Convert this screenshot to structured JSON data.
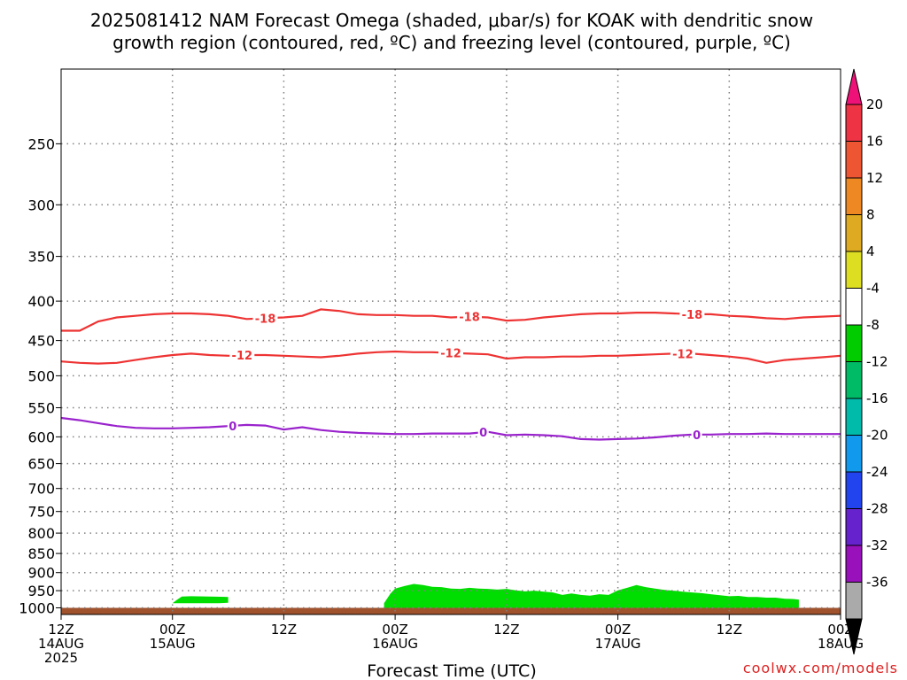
{
  "title_line1": "2025081412 NAM Forecast Omega (shaded, μbar/s) for KOAK with dendritic snow",
  "title_line2": "growth region (contoured, red, ºC) and freezing level (contoured, purple, ºC)",
  "credit": "coolwx.com/models",
  "colors": {
    "dgz_contour": "#ee3333",
    "freezing_contour": "#9922cc",
    "terrain": "#a0522d",
    "omega_upward": "#00dd00",
    "grid": "#808080"
  },
  "chart_data": {
    "type": "area",
    "xlabel": "Forecast Time (UTC)",
    "ylabel": "",
    "x_unit": "forecast hour",
    "xlim": [
      0,
      84
    ],
    "ylim_hpa": [
      1020,
      200
    ],
    "y_scale": "log-pressure (inverted)",
    "grid": true,
    "x_ticks": [
      {
        "hour": 0,
        "lines": [
          "12Z",
          "14AUG",
          "2025"
        ]
      },
      {
        "hour": 12,
        "lines": [
          "00Z",
          "15AUG"
        ]
      },
      {
        "hour": 24,
        "lines": [
          "12Z"
        ]
      },
      {
        "hour": 36,
        "lines": [
          "00Z",
          "16AUG"
        ]
      },
      {
        "hour": 48,
        "lines": [
          "12Z"
        ]
      },
      {
        "hour": 60,
        "lines": [
          "00Z",
          "17AUG"
        ]
      },
      {
        "hour": 72,
        "lines": [
          "12Z"
        ]
      },
      {
        "hour": 84,
        "lines": [
          "00Z",
          "18AUG"
        ]
      }
    ],
    "y_ticks": [
      250,
      300,
      350,
      400,
      450,
      500,
      550,
      600,
      650,
      700,
      750,
      800,
      850,
      900,
      950,
      1000
    ],
    "contours": [
      {
        "level": "-18",
        "color": "#ee3333",
        "x": [
          0,
          2,
          4,
          6,
          8,
          10,
          12,
          14,
          16,
          18,
          20,
          22,
          24,
          26,
          28,
          30,
          32,
          34,
          36,
          38,
          40,
          42,
          44,
          46,
          48,
          50,
          52,
          54,
          56,
          58,
          60,
          62,
          64,
          66,
          68,
          70,
          72,
          74,
          76,
          78,
          80,
          82,
          84
        ],
        "y": [
          437,
          437,
          425,
          420,
          418,
          416,
          415,
          415,
          416,
          418,
          422,
          421,
          420,
          418,
          410,
          412,
          416,
          417,
          417,
          418,
          418,
          420,
          419,
          420,
          424,
          423,
          420,
          418,
          416,
          415,
          415,
          414,
          414,
          415,
          416,
          416,
          418,
          419,
          421,
          422,
          420,
          419,
          418
        ],
        "labels": [
          {
            "x": 22,
            "text": "-18"
          },
          {
            "x": 44,
            "text": "-18"
          },
          {
            "x": 68,
            "text": "-18"
          }
        ]
      },
      {
        "level": "-12",
        "color": "#ee3333",
        "x": [
          0,
          2,
          4,
          6,
          8,
          10,
          12,
          14,
          16,
          18,
          20,
          22,
          24,
          26,
          28,
          30,
          32,
          34,
          36,
          38,
          40,
          42,
          44,
          46,
          48,
          50,
          52,
          54,
          56,
          58,
          60,
          62,
          64,
          66,
          68,
          70,
          72,
          74,
          76,
          78,
          80,
          82,
          84
        ],
        "y": [
          479,
          481,
          482,
          481,
          477,
          473,
          470,
          468,
          470,
          471,
          470,
          470,
          471,
          472,
          473,
          471,
          468,
          466,
          465,
          466,
          466,
          467,
          468,
          469,
          475,
          473,
          473,
          472,
          472,
          471,
          471,
          470,
          469,
          468,
          468,
          470,
          472,
          475,
          481,
          477,
          475,
          473,
          471
        ],
        "labels": [
          {
            "x": 19.5,
            "text": "-12"
          },
          {
            "x": 42,
            "text": "-12"
          },
          {
            "x": 67,
            "text": "-12"
          }
        ]
      },
      {
        "level": "0",
        "color": "#9922cc",
        "x": [
          0,
          2,
          4,
          6,
          8,
          10,
          12,
          14,
          16,
          18,
          20,
          22,
          24,
          26,
          28,
          30,
          32,
          34,
          36,
          38,
          40,
          42,
          44,
          46,
          48,
          50,
          52,
          54,
          56,
          58,
          60,
          62,
          64,
          66,
          68,
          70,
          72,
          74,
          76,
          78,
          80,
          82,
          84
        ],
        "y": [
          567,
          571,
          576,
          581,
          584,
          585,
          585,
          584,
          583,
          581,
          579,
          580,
          587,
          583,
          588,
          591,
          593,
          594,
          595,
          595,
          594,
          594,
          594,
          591,
          597,
          596,
          597,
          599,
          604,
          605,
          604,
          603,
          601,
          598,
          596,
          596,
          595,
          595,
          594,
          595,
          595,
          595,
          595
        ],
        "labels": [
          {
            "x": 18.5,
            "text": "0"
          },
          {
            "x": 45.5,
            "text": "0"
          },
          {
            "x": 68.5,
            "text": "0"
          }
        ]
      }
    ],
    "surface_pressure_hpa": 1000,
    "upward_omega_regions": [
      {
        "range": "-4 to -8",
        "x": [
          12.0,
          12.5,
          13.0,
          14.0,
          16.0,
          18.0,
          18.0,
          17.0,
          15.0,
          13.0,
          12.0
        ],
        "top": [
          986,
          976,
          967,
          966,
          967,
          968,
          985,
          986,
          986,
          986,
          986
        ]
      },
      {
        "range": "-4 to -8",
        "x": [
          34.8,
          35.5,
          36.0,
          37.0,
          38.0,
          39.0,
          40.0,
          41.0,
          42.0,
          43.0,
          44.0,
          45.0,
          46.0,
          47.0,
          48.0,
          49.0,
          50.0,
          51.0,
          52.0,
          53.0,
          54.0,
          55.0,
          56.0,
          57.0,
          58.0,
          59.0,
          60.0,
          61.0,
          62.0,
          63.0,
          64.0,
          65.0,
          66.0,
          67.0,
          68.0,
          69.0,
          70.0,
          71.0,
          72.0,
          73.0,
          74.0,
          75.0,
          76.0,
          77.0,
          78.0,
          79.0,
          79.5
        ],
        "top": [
          986,
          958,
          944,
          937,
          931,
          934,
          939,
          940,
          944,
          945,
          942,
          944,
          945,
          947,
          945,
          949,
          952,
          950,
          953,
          955,
          962,
          958,
          962,
          964,
          960,
          962,
          949,
          942,
          934,
          940,
          944,
          948,
          950,
          953,
          955,
          957,
          960,
          963,
          966,
          965,
          968,
          968,
          970,
          970,
          973,
          974,
          976
        ]
      }
    ],
    "colorbar": {
      "unit": "μbar/s",
      "labels": [
        "20",
        "16",
        "12",
        "8",
        "4",
        "-4",
        "-8",
        "-12",
        "-16",
        "-20",
        "-24",
        "-28",
        "-32",
        "-36"
      ],
      "colors": [
        "#ee3344",
        "#ee5533",
        "#ee8822",
        "#ddaa22",
        "#dddd22",
        "#ffffff",
        "#00cc00",
        "#00bb66",
        "#00bbaa",
        "#1199ee",
        "#2244ee",
        "#6622cc",
        "#9911bb",
        "#aaaaaa"
      ],
      "top_color": "#ee1177",
      "bottom_color": "#000000"
    }
  }
}
